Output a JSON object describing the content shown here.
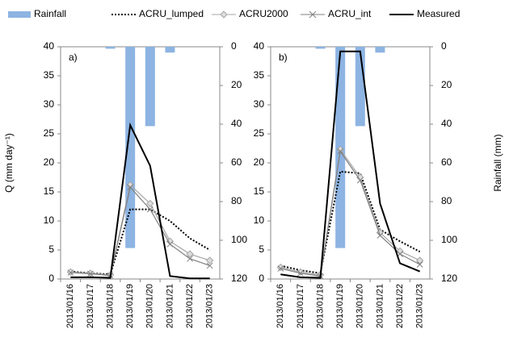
{
  "chart_data": [
    {
      "type": "line",
      "annotation": "a)",
      "ylabel": "Q (mm day⁻¹)",
      "legend": "top",
      "categories": [
        "2013/01/16",
        "2013/01/17",
        "2013/01/18",
        "2013/01/19",
        "2013/01/20",
        "2013/01/21",
        "2013/01/22",
        "2013/01/23"
      ],
      "ylim": [
        0,
        40
      ],
      "yticks": [
        0,
        5,
        10,
        15,
        20,
        25,
        30,
        35,
        40
      ],
      "y2lim": [
        120,
        0
      ],
      "y2ticks": [
        0,
        20,
        40,
        60,
        80,
        100,
        120
      ],
      "series": [
        {
          "name": "Rainfall",
          "kind": "bar",
          "axis": "y2",
          "color": "#8db4e2",
          "values": [
            0,
            0,
            1,
            104,
            41,
            3,
            0,
            0
          ]
        },
        {
          "name": "ACRU_lumped",
          "color": "#000000",
          "dash": true,
          "values": [
            1.3,
            1.0,
            0.8,
            12,
            12,
            10,
            7,
            5
          ]
        },
        {
          "name": "ACRU2000",
          "color": "#a6a6a6",
          "marker": "diamond",
          "values": [
            1.2,
            1.0,
            0.7,
            16.2,
            13,
            6.5,
            4.3,
            3.2
          ]
        },
        {
          "name": "ACRU_int",
          "color": "#808080",
          "marker": "x",
          "values": [
            1.1,
            0.9,
            0.6,
            15.8,
            12,
            6,
            3.5,
            2.3
          ]
        },
        {
          "name": "Measured",
          "color": "#000000",
          "values": [
            0.3,
            0.3,
            0.2,
            26.5,
            19.5,
            0.5,
            0.1,
            0.1
          ]
        }
      ]
    },
    {
      "type": "line",
      "annotation": "b)",
      "y2label": "Rainfall (mm)",
      "categories": [
        "2013/01/16",
        "2013/01/17",
        "2013/01/18",
        "2013/01/19",
        "2013/01/20",
        "2013/01/21",
        "2013/01/22",
        "2013/01/23"
      ],
      "ylim": [
        0,
        40
      ],
      "yticks": [
        0,
        5,
        10,
        15,
        20,
        25,
        30,
        35,
        40
      ],
      "y2lim": [
        120,
        0
      ],
      "y2ticks": [
        0,
        20,
        40,
        60,
        80,
        100,
        120
      ],
      "series": [
        {
          "kind": "bar",
          "axis": "y2",
          "color": "#8db4e2",
          "values": [
            0,
            0,
            1,
            104,
            41,
            3,
            0,
            0
          ]
        },
        {
          "color": "#000000",
          "dash": true,
          "values": [
            2.3,
            1.5,
            1.0,
            18.5,
            18.2,
            8.5,
            6.5,
            4.7
          ]
        },
        {
          "color": "#a6a6a6",
          "marker": "diamond",
          "values": [
            2.0,
            1.2,
            0.7,
            22.3,
            17.5,
            8,
            4.8,
            3.2
          ]
        },
        {
          "color": "#808080",
          "marker": "x",
          "values": [
            1.8,
            1.0,
            0.5,
            22,
            17,
            7.5,
            4.3,
            2.5
          ]
        },
        {
          "color": "#000000",
          "values": [
            0.8,
            0.3,
            0.2,
            39.2,
            39.2,
            13,
            2.7,
            1.3
          ]
        }
      ]
    }
  ]
}
